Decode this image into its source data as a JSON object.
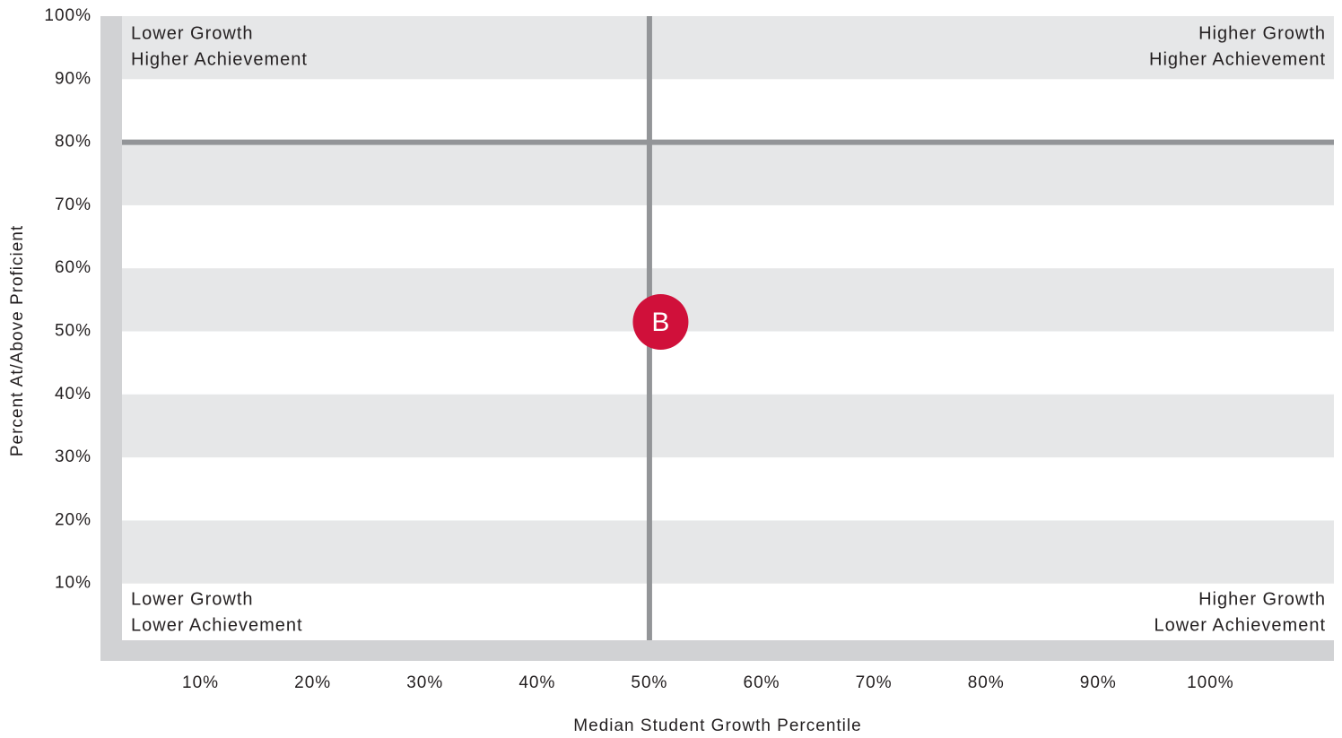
{
  "chart_data": {
    "type": "scatter",
    "x_label": "Median Student Growth Percentile",
    "y_label": "Percent At/Above Proficient",
    "xlim": [
      3,
      111
    ],
    "ylim": [
      1,
      100
    ],
    "xticks": [
      {
        "value": 10,
        "label": "10%"
      },
      {
        "value": 20,
        "label": "20%"
      },
      {
        "value": 30,
        "label": "30%"
      },
      {
        "value": 40,
        "label": "40%"
      },
      {
        "value": 50,
        "label": "50%"
      },
      {
        "value": 60,
        "label": "60%"
      },
      {
        "value": 70,
        "label": "70%"
      },
      {
        "value": 80,
        "label": "80%"
      },
      {
        "value": 90,
        "label": "90%"
      },
      {
        "value": 100,
        "label": "100%"
      }
    ],
    "yticks": [
      {
        "value": 10,
        "label": "10%"
      },
      {
        "value": 20,
        "label": "20%"
      },
      {
        "value": 30,
        "label": "30%"
      },
      {
        "value": 40,
        "label": "40%"
      },
      {
        "value": 50,
        "label": "50%"
      },
      {
        "value": 60,
        "label": "60%"
      },
      {
        "value": 70,
        "label": "70%"
      },
      {
        "value": 80,
        "label": "80%"
      },
      {
        "value": 90,
        "label": "90%"
      },
      {
        "value": 100,
        "label": "100%"
      }
    ],
    "vline": 50,
    "hline": 80,
    "line_color": "#939598",
    "points": [
      {
        "label": "B",
        "x": 51,
        "y": 51.5,
        "color": "#d0103a"
      }
    ],
    "quadrants": {
      "top_left": [
        "Lower Growth",
        "Higher Achievement"
      ],
      "top_right": [
        "Higher Growth",
        "Higher Achievement"
      ],
      "bottom_left": [
        "Lower Growth",
        "Lower Achievement"
      ],
      "bottom_right": [
        "Higher Growth",
        "Lower Achievement"
      ]
    }
  }
}
